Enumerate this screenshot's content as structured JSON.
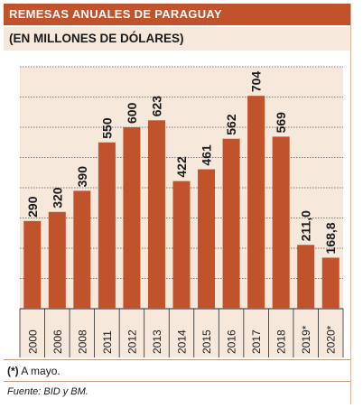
{
  "header": {
    "title": "REMESAS ANUALES DE PARAGUAY",
    "subtitle": "(EN MILLONES DE DÓLARES)"
  },
  "colors": {
    "title_band": "#c0522c",
    "subtitle_band": "#f7e8dc",
    "bar": "#c0522c",
    "plot_bg": "#f7e8dc",
    "grid": "#555555"
  },
  "chart_data": {
    "type": "bar",
    "title": "REMESAS ANUALES DE PARAGUAY",
    "subtitle": "(EN MILLONES DE DÓLARES)",
    "categories": [
      "2000",
      "2006",
      "2008",
      "2011",
      "2012",
      "2013",
      "2014",
      "2015",
      "2016",
      "2017",
      "2018",
      "2019*",
      "2020*"
    ],
    "values": [
      290,
      320,
      390,
      550,
      600,
      623,
      422,
      461,
      562,
      704,
      569,
      211.0,
      168.8
    ],
    "value_labels": [
      "290",
      "320",
      "390",
      "550",
      "600",
      "623",
      "422",
      "461",
      "562",
      "704",
      "569",
      "211,0",
      "168,8"
    ],
    "ylim": [
      0,
      800
    ],
    "ytick_step": 100,
    "yticks_labeled": false,
    "grid": true
  },
  "footnote": {
    "marker": "(*)",
    "text": " A mayo."
  },
  "source": "Fuente: BID y BM."
}
